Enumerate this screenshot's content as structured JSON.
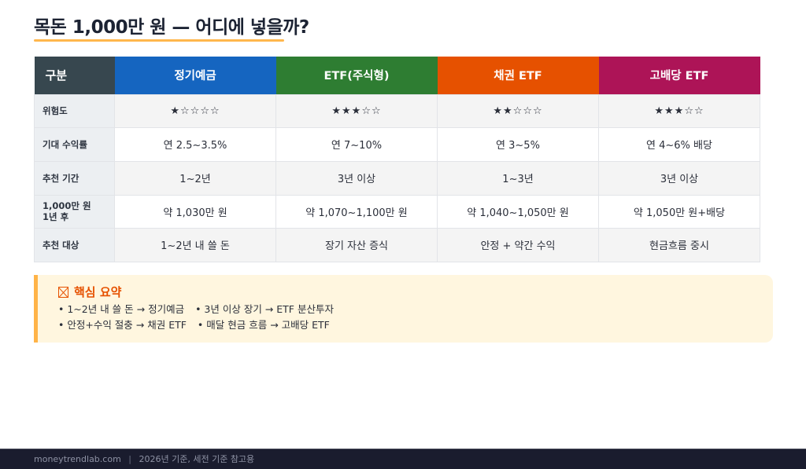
{
  "title": "목돈 1,000만 원 — 어디에 넣을까?",
  "colors": {
    "title_underline": "#ffb74d",
    "header_label": "#37474f",
    "deposit": "#1565c0",
    "etf_stock": "#2e7d32",
    "bond_etf": "#e65100",
    "dividend_etf": "#ad1457",
    "summary_bg": "#fff6df",
    "summary_accent": "#ffb347",
    "summary_title": "#e65100",
    "footer_bg": "#1a1c2e"
  },
  "table": {
    "header_label": "구분",
    "columns": [
      {
        "label": "정기예금",
        "color": "#1565c0"
      },
      {
        "label": "ETF(주식형)",
        "color": "#2e7d32"
      },
      {
        "label": "채권 ETF",
        "color": "#e65100"
      },
      {
        "label": "고배당 ETF",
        "color": "#ad1457"
      }
    ],
    "rows": [
      {
        "label": "위험도",
        "values": [
          "★☆☆☆☆",
          "★★★☆☆",
          "★★☆☆☆",
          "★★★☆☆"
        ]
      },
      {
        "label": "기대 수익률",
        "values": [
          "연 2.5~3.5%",
          "연 7~10%",
          "연 3~5%",
          "연 4~6% 배당"
        ]
      },
      {
        "label": "추천 기간",
        "values": [
          "1~2년",
          "3년 이상",
          "1~3년",
          "3년 이상"
        ]
      },
      {
        "label_line1": "1,000만 원",
        "label_line2": "1년 후",
        "values": [
          "약 1,030만 원",
          "약 1,070~1,100만 원",
          "약 1,040~1,050만 원",
          "약 1,050만 원+배당"
        ]
      },
      {
        "label": "추천 대상",
        "values": [
          "1~2년 내 쓸 돈",
          "장기 자산 증식",
          "안정 + 약간 수익",
          "현금흐름 중시"
        ]
      }
    ]
  },
  "summary": {
    "icon": "ballot-box-x-icon",
    "title": "핵심 요약",
    "lines": [
      [
        "• 1~2년 내 쓸 돈 → 정기예금",
        "• 3년 이상 장기 → ETF 분산투자"
      ],
      [
        "• 안정+수익 절충 → 채권 ETF",
        "• 매달 현금 흐름 → 고배당 ETF"
      ]
    ]
  },
  "footer": {
    "site": "moneytrendlab.com",
    "separator": "|",
    "note": "2026년 기준, 세전 기준 참고용"
  }
}
